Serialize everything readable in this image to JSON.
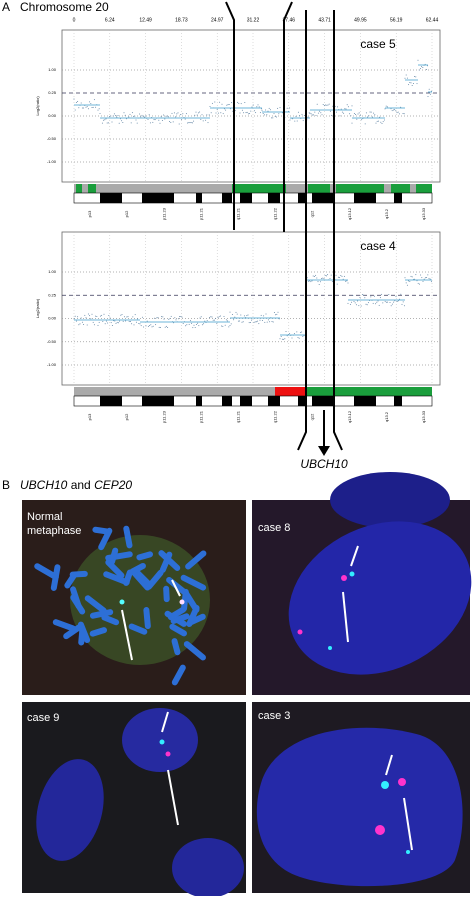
{
  "panel_a": {
    "label": "A",
    "title": "Chromosome 20",
    "x_ticks": [
      "0",
      "6.24",
      "12.49",
      "18.73",
      "24.97",
      "31.22",
      "37.46",
      "43.71",
      "49.95",
      "56.19",
      "62.44"
    ],
    "plots": [
      {
        "case": "case 5",
        "y_axis_label": "Log2(ratio)",
        "y_ticks": [
          "1.00",
          "0.25",
          "0.00",
          "-0.50",
          "-1.00"
        ],
        "bands": [
          "p13",
          "p12",
          "p11.23",
          "p11.21",
          "q11.21",
          "q11.22",
          "q12",
          "q13.12",
          "q13.2",
          "q13.33"
        ]
      },
      {
        "case": "case 4",
        "y_axis_label": "Log2(ratio)",
        "y_ticks": [
          "1.00",
          "0.25",
          "0.00",
          "-0.50",
          "-1.00"
        ],
        "bands": [
          "p13",
          "p12",
          "p11.23",
          "p11.21",
          "q11.21",
          "q11.22",
          "q12",
          "q13.12",
          "q13.2",
          "q13.33"
        ]
      }
    ],
    "gene_label": "UBCH10"
  },
  "panel_b": {
    "label": "B",
    "gene1": "UBCH10",
    "conj": "and",
    "gene2": "CEP20",
    "images": [
      {
        "label": [
          "Normal",
          "metaphase"
        ]
      },
      {
        "label": [
          "case 8"
        ]
      },
      {
        "label": [
          "case 9"
        ]
      },
      {
        "label": [
          "case 3"
        ]
      }
    ]
  }
}
